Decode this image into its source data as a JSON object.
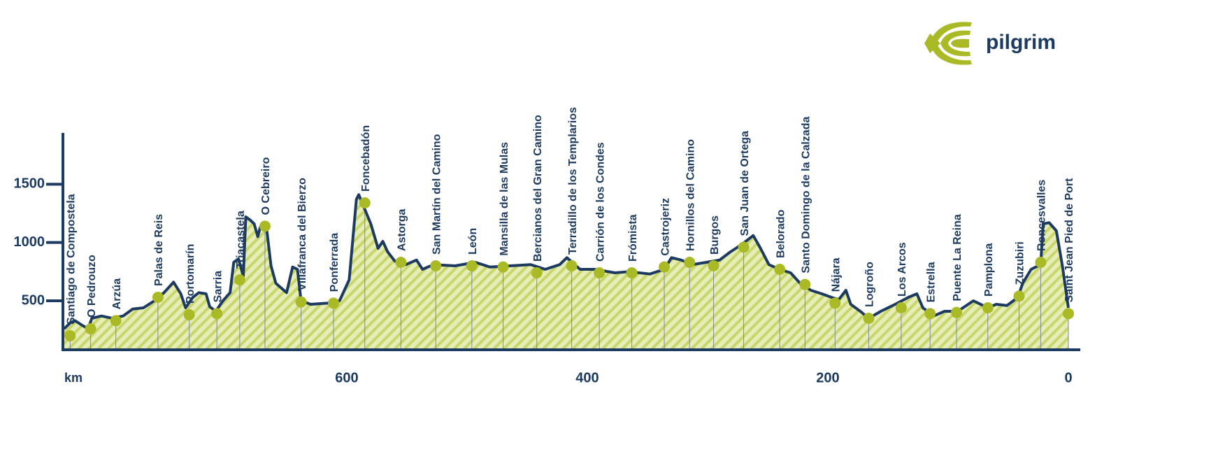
{
  "chart_data": {
    "type": "area",
    "brand": "pilgrim",
    "x_axis_label": "km",
    "xlim": [
      836,
      0
    ],
    "xticks": [
      600,
      400,
      200,
      0
    ],
    "ylim": [
      80,
      1940
    ],
    "yticks": [
      500,
      1000,
      1500
    ],
    "line_color": "#1d3b60",
    "fill_color": "#e6edb6",
    "hatch_color": "#c9d66c",
    "marker_color": "#a9ba26",
    "profile": {
      "x": [
        835,
        830,
        826,
        820,
        815,
        812,
        804,
        795,
        786,
        778,
        769,
        760,
        752,
        744,
        738,
        734,
        728,
        723,
        717,
        714,
        709,
        703,
        697,
        694,
        690,
        686,
        684,
        680,
        677,
        674,
        672,
        667,
        663,
        659,
        650,
        645,
        641,
        638,
        630,
        615,
        606,
        598,
        592,
        590,
        586,
        580,
        574,
        570,
        566,
        560,
        551,
        542,
        537,
        528,
        510,
        493,
        481,
        464,
        447,
        435,
        423,
        417,
        406,
        394,
        377,
        365,
        348,
        336,
        330,
        322,
        313,
        301,
        290,
        281,
        272,
        262,
        256,
        249,
        240,
        231,
        223,
        214,
        205,
        197,
        191,
        185,
        181,
        173,
        166,
        156,
        144,
        133,
        126,
        121,
        112,
        103,
        92,
        79,
        67,
        60,
        51,
        42,
        38,
        31,
        23,
        21,
        16,
        10,
        5,
        0
      ],
      "values": [
        260,
        310,
        330,
        290,
        260,
        350,
        370,
        350,
        370,
        430,
        440,
        500,
        570,
        660,
        560,
        440,
        530,
        570,
        560,
        450,
        410,
        500,
        570,
        830,
        860,
        710,
        1220,
        1190,
        1160,
        1050,
        1130,
        1150,
        800,
        650,
        570,
        790,
        770,
        500,
        470,
        480,
        500,
        680,
        1370,
        1410,
        1310,
        1160,
        950,
        1010,
        920,
        840,
        810,
        850,
        770,
        810,
        800,
        830,
        790,
        800,
        810,
        770,
        810,
        870,
        770,
        770,
        740,
        750,
        730,
        770,
        870,
        850,
        810,
        830,
        850,
        920,
        980,
        1060,
        950,
        810,
        770,
        740,
        650,
        590,
        560,
        530,
        510,
        590,
        470,
        410,
        350,
        410,
        470,
        530,
        560,
        440,
        370,
        410,
        410,
        500,
        440,
        470,
        460,
        530,
        650,
        770,
        810,
        1160,
        1170,
        1100,
        800,
        440
      ]
    },
    "stops": {
      "labels": [
        "Santiago de Compostela",
        "O Pedrouzo",
        "Arzúa",
        "Palas de Reis",
        "Portomarín",
        "Sarria",
        "Triacastela",
        "O Cebreiro",
        "Villafranca del Bierzo",
        "Ponferrada",
        "Foncebadón",
        "Astorga",
        "San Martín del Camino",
        "León",
        "Mansilla de las Mulas",
        "Bercianos del Gran Camino",
        "Terradillo de los Templarios",
        "Carrión de los Condes",
        "Frómista",
        "Castrojeriz",
        "Hornillos del Camino",
        "Burgos",
        "San Juan de Ortega",
        "Belorado",
        "Santo Domingo de la Calzada",
        "Nájara",
        "Logroño",
        "Los Arcos",
        "Estrella",
        "Puente La Reina",
        "Pamplona",
        "Zuzubiri",
        "Roncesvalles",
        "Saint Jean Pied de Port"
      ],
      "x": [
        830,
        813,
        792,
        757,
        731,
        708,
        689,
        668,
        638,
        611,
        585,
        555,
        526,
        496,
        470,
        442,
        413,
        390,
        363,
        336,
        315,
        295,
        270,
        240,
        219,
        194,
        166,
        139,
        115,
        93,
        67,
        41,
        23,
        0
      ],
      "values": [
        200,
        260,
        330,
        530,
        380,
        390,
        680,
        1140,
        490,
        480,
        1340,
        830,
        800,
        800,
        790,
        740,
        800,
        740,
        740,
        790,
        830,
        800,
        960,
        770,
        640,
        480,
        350,
        440,
        390,
        400,
        440,
        540,
        830,
        390
      ]
    }
  }
}
